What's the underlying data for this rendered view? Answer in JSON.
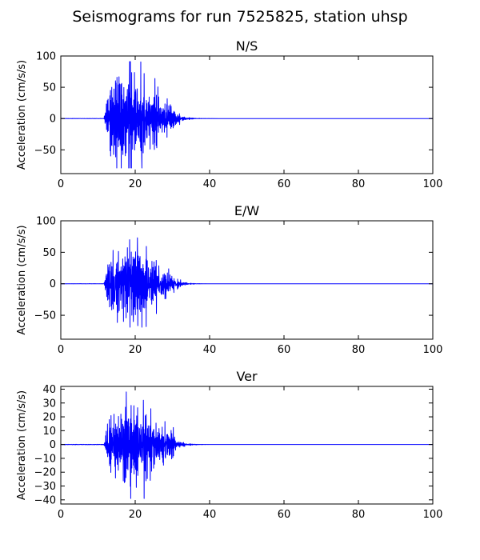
{
  "figure": {
    "suptitle": "Seismograms for run 7525825, station uhsp"
  },
  "chart_data": [
    {
      "type": "line",
      "title": "N/S",
      "xlabel": "",
      "ylabel": "Acceleration (cm/s/s)",
      "xlim": [
        0,
        100
      ],
      "ylim": [
        -88,
        100
      ],
      "xticks": [
        0,
        20,
        40,
        60,
        80,
        100
      ],
      "yticks": [
        -50,
        0,
        50,
        100
      ],
      "grid": false,
      "line_color": "#0000ff",
      "series": [
        {
          "signal": {
            "onset": 11.6,
            "peak_time": 18.5,
            "end": 36,
            "peak_amplitude": 91,
            "min_amplitude": -79,
            "strong_motion_end": 30
          },
          "peaks": [
            {
              "t": 18.5,
              "v": 91
            },
            {
              "t": 19.0,
              "v": -79
            },
            {
              "t": 21.8,
              "v": -79
            },
            {
              "t": 22.4,
              "v": 72
            },
            {
              "t": 25.3,
              "v": 64
            }
          ]
        }
      ]
    },
    {
      "type": "line",
      "title": "E/W",
      "xlabel": "",
      "ylabel": "Acceleration (cm/s/s)",
      "xlim": [
        0,
        100
      ],
      "ylim": [
        -88,
        100
      ],
      "xticks": [
        0,
        20,
        40,
        60,
        80,
        100
      ],
      "yticks": [
        -50,
        0,
        50,
        100
      ],
      "grid": false,
      "line_color": "#0000ff",
      "series": [
        {
          "signal": {
            "onset": 11.6,
            "peak_time": 20.5,
            "end": 36,
            "peak_amplitude": 73,
            "min_amplitude": -69,
            "strong_motion_end": 30
          },
          "peaks": [
            {
              "t": 18.5,
              "v": 70
            },
            {
              "t": 20.6,
              "v": 73
            },
            {
              "t": 21.8,
              "v": -69
            },
            {
              "t": 19.5,
              "v": -60
            }
          ]
        }
      ]
    },
    {
      "type": "line",
      "title": "Ver",
      "xlabel": "",
      "ylabel": "Acceleration (cm/s/s)",
      "xlim": [
        0,
        100
      ],
      "ylim": [
        -43,
        42
      ],
      "xticks": [
        0,
        20,
        40,
        60,
        80,
        100
      ],
      "yticks": [
        -40,
        -30,
        -20,
        -10,
        0,
        10,
        20,
        30,
        40
      ],
      "grid": false,
      "line_color": "#0000ff",
      "series": [
        {
          "signal": {
            "onset": 11.6,
            "peak_time": 17.6,
            "end": 36,
            "peak_amplitude": 38,
            "min_amplitude": -39,
            "strong_motion_end": 30
          },
          "peaks": [
            {
              "t": 17.6,
              "v": 38
            },
            {
              "t": 18.8,
              "v": -39
            },
            {
              "t": 22.2,
              "v": 32
            },
            {
              "t": 20.3,
              "v": -31
            }
          ]
        }
      ]
    }
  ]
}
